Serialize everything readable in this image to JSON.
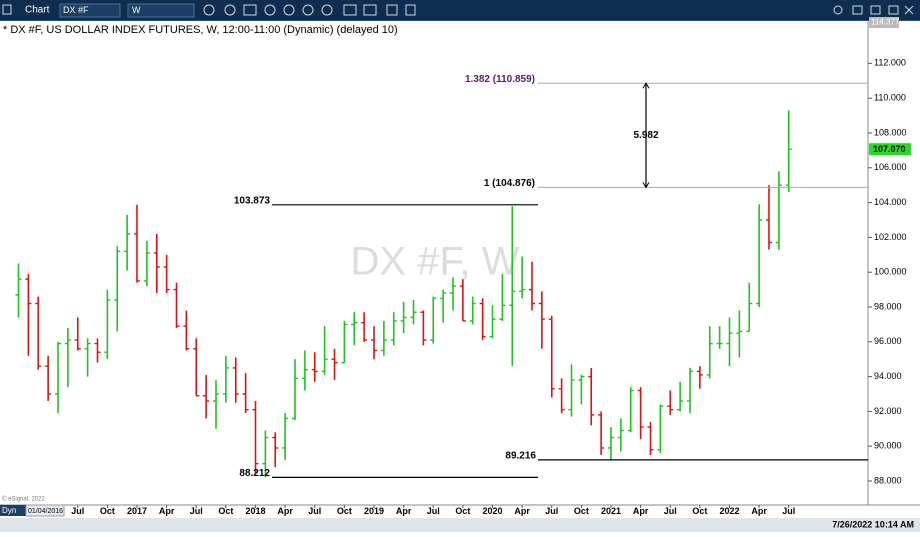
{
  "toolbar": {
    "app": "Chart",
    "symbol": "DX #F",
    "interval": "W"
  },
  "status": {
    "mode": "Dyn",
    "start_date": "01/04/2016",
    "copyright": "© eSignal, 2022",
    "datetime": "7/26/2022 10:14 AM"
  },
  "chart_data": {
    "type": "ohlc",
    "title": "* DX #F, US DOLLAR INDEX FUTURES, W, 12:00-11:00 (Dynamic) (delayed 10)",
    "watermark": "DX #F, W",
    "up_color": "#1fc41f",
    "down_color": "#e01010",
    "categories": [
      null,
      null,
      null,
      null,
      null,
      null,
      "Jul",
      null,
      null,
      "Oct",
      null,
      null,
      "2017",
      null,
      null,
      "Apr",
      null,
      null,
      "Jul",
      null,
      null,
      "Oct",
      null,
      null,
      "2018",
      null,
      null,
      "Apr",
      null,
      null,
      "Jul",
      null,
      null,
      "Oct",
      null,
      null,
      "2019",
      null,
      null,
      "Apr",
      null,
      null,
      "Jul",
      null,
      null,
      "Oct",
      null,
      null,
      "2020",
      null,
      null,
      "Apr",
      null,
      null,
      "Jul",
      null,
      null,
      "Oct",
      null,
      null,
      "2021",
      null,
      null,
      "Apr",
      null,
      null,
      "Jul",
      null,
      null,
      "Oct",
      null,
      null,
      "2022",
      null,
      null,
      "Apr",
      null,
      null,
      "Jul"
    ],
    "open": [
      98.7,
      99.6,
      98.2,
      94.6,
      93.0,
      95.9,
      96.1,
      95.6,
      95.9,
      95.4,
      98.4,
      101.2,
      102.2,
      99.5,
      101.1,
      100.3,
      99.0,
      96.9,
      95.6,
      92.9,
      92.6,
      93.0,
      94.5,
      93.0,
      92.1,
      89.0,
      90.5,
      89.9,
      91.6,
      93.9,
      94.4,
      94.3,
      95.0,
      94.8,
      97.0,
      97.1,
      96.1,
      95.5,
      96.1,
      97.2,
      97.4,
      97.7,
      96.1,
      98.5,
      98.8,
      99.2,
      97.2,
      98.2,
      96.3,
      97.3,
      98.1,
      98.9,
      99.0,
      98.2,
      97.3,
      93.3,
      92.1,
      93.8,
      94.0,
      91.8,
      89.9,
      90.5,
      90.9,
      93.2,
      91.1,
      89.8,
      92.3,
      92.1,
      92.6,
      94.3,
      94.1,
      95.9,
      95.9,
      96.5,
      96.6,
      98.2,
      103.0,
      101.7,
      105.0
    ],
    "high": [
      100.5,
      99.9,
      98.6,
      95.2,
      96.0,
      96.8,
      97.4,
      96.2,
      96.2,
      99.0,
      101.5,
      103.3,
      103.873,
      101.8,
      102.2,
      101.0,
      99.4,
      97.8,
      96.2,
      94.1,
      93.8,
      95.2,
      95.1,
      94.2,
      92.6,
      90.9,
      90.8,
      91.9,
      95.0,
      95.5,
      95.4,
      96.9,
      95.6,
      97.2,
      97.7,
      97.7,
      96.9,
      97.2,
      97.7,
      98.3,
      98.4,
      97.8,
      98.6,
      99.0,
      99.7,
      99.6,
      98.6,
      98.5,
      98.1,
      99.9,
      103.8,
      100.9,
      100.6,
      98.9,
      97.5,
      93.9,
      94.7,
      94.1,
      94.5,
      92.0,
      91.1,
      91.6,
      93.4,
      93.4,
      91.4,
      92.4,
      93.2,
      93.7,
      94.5,
      94.6,
      96.9,
      96.9,
      97.4,
      97.8,
      99.4,
      103.9,
      105.0,
      105.8,
      109.3
    ],
    "low": [
      97.4,
      95.2,
      94.4,
      92.6,
      91.9,
      93.4,
      95.5,
      94.0,
      94.8,
      95.0,
      96.6,
      100.1,
      99.4,
      99.2,
      98.8,
      98.8,
      96.8,
      95.5,
      92.9,
      91.6,
      91.0,
      92.5,
      92.5,
      91.9,
      88.4,
      88.212,
      88.8,
      89.2,
      91.5,
      93.2,
      93.7,
      94.1,
      93.8,
      94.8,
      95.8,
      96.0,
      95.0,
      95.2,
      95.8,
      96.5,
      97.0,
      95.8,
      95.9,
      97.1,
      97.8,
      97.2,
      97.0,
      96.1,
      96.2,
      97.2,
      94.6,
      98.5,
      97.8,
      95.6,
      92.8,
      91.9,
      91.7,
      92.4,
      91.2,
      89.5,
      89.216,
      89.7,
      90.8,
      90.4,
      89.5,
      89.6,
      91.8,
      92.0,
      91.9,
      93.3,
      93.9,
      95.6,
      94.6,
      95.1,
      96.6,
      98.0,
      101.3,
      101.3,
      104.6
    ],
    "close": [
      99.6,
      98.2,
      94.6,
      93.0,
      95.9,
      96.1,
      95.6,
      95.9,
      95.4,
      98.4,
      101.2,
      102.2,
      99.5,
      101.1,
      100.3,
      99.0,
      96.9,
      95.6,
      92.9,
      92.6,
      93.0,
      94.5,
      93.0,
      92.1,
      89.0,
      90.5,
      89.9,
      91.6,
      93.9,
      94.4,
      94.3,
      95.0,
      94.8,
      97.0,
      97.1,
      96.1,
      95.5,
      96.1,
      97.2,
      97.4,
      97.7,
      96.1,
      98.5,
      98.8,
      99.2,
      97.2,
      98.2,
      96.3,
      97.3,
      98.1,
      98.9,
      99.0,
      98.2,
      97.3,
      93.3,
      92.1,
      93.8,
      94.0,
      91.8,
      89.9,
      90.5,
      90.9,
      93.2,
      91.1,
      89.8,
      92.3,
      92.1,
      92.6,
      94.3,
      94.1,
      95.9,
      95.9,
      96.5,
      96.6,
      98.2,
      103.0,
      101.7,
      105.0,
      107.07
    ],
    "ylim": [
      86.6,
      114.377
    ],
    "yticks": [
      {
        "value": 88,
        "label": "88.000"
      },
      {
        "value": 90,
        "label": "90.000"
      },
      {
        "value": 92,
        "label": "92.000"
      },
      {
        "value": 94,
        "label": "94.000"
      },
      {
        "value": 96,
        "label": "96.000"
      },
      {
        "value": 98,
        "label": "98.000"
      },
      {
        "value": 100,
        "label": "100.000"
      },
      {
        "value": 102,
        "label": "102.000"
      },
      {
        "value": 104,
        "label": "104.000"
      },
      {
        "value": 106,
        "label": "106.000"
      },
      {
        "value": 108,
        "label": "108.000"
      },
      {
        "value": 110,
        "label": "110.000"
      },
      {
        "value": 112,
        "label": "112.000"
      }
    ],
    "top_tick": {
      "value": 114.377,
      "label": "114.377"
    },
    "last": {
      "value": 107.07,
      "label": "107.070"
    },
    "levels": [
      {
        "value": 103.873,
        "label": "103.873"
      },
      {
        "value": 88.212,
        "label": "88.212"
      },
      {
        "value": 89.216,
        "label": "89.216"
      }
    ],
    "fib_levels": [
      {
        "value": 110.859,
        "label": "1.382 (110.859)",
        "color": "#5a1a6e"
      },
      {
        "value": 104.876,
        "label": "1 (104.876)",
        "color": "#000000"
      }
    ],
    "fib_range": "5.982"
  }
}
